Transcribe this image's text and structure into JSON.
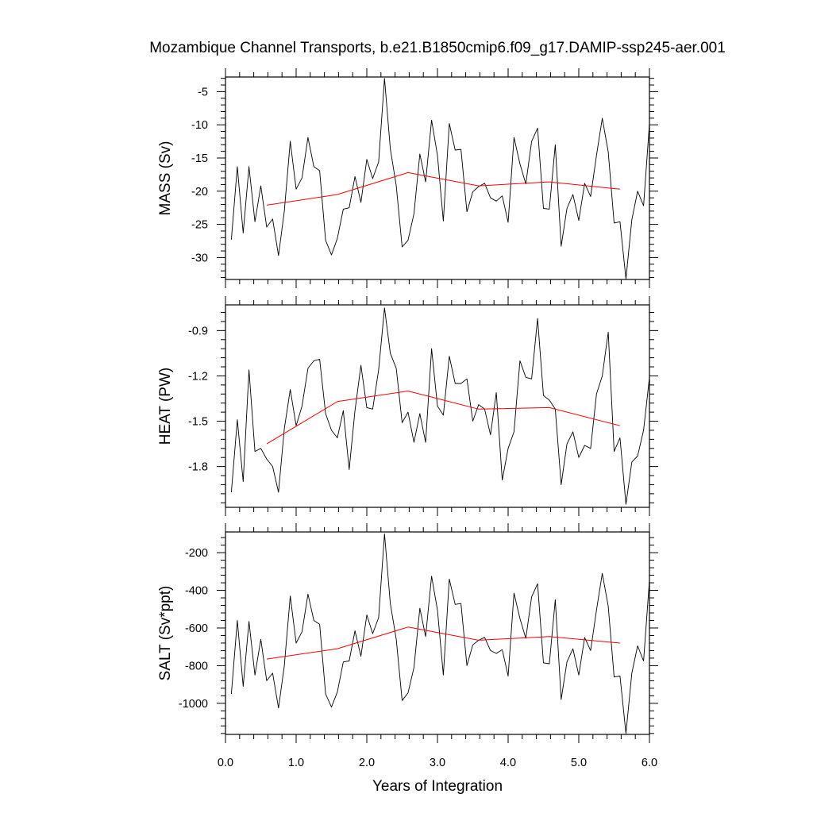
{
  "chart_data": {
    "type": "line",
    "title": "Mozambique Channel Transports, b.e21.B1850cmip6.f09_g17.DAMIP-ssp245-aer.001",
    "xlabel": "Years of Integration",
    "xlim": [
      0,
      6
    ],
    "xticks": [
      0,
      1,
      2,
      3,
      4,
      5,
      6
    ],
    "xtick_labels": [
      "0.0",
      "1.0",
      "2.0",
      "3.0",
      "4.0",
      "5.0",
      "6.0"
    ],
    "raw_x": [
      0.083,
      0.167,
      0.25,
      0.333,
      0.417,
      0.5,
      0.583,
      0.667,
      0.75,
      0.833,
      0.917,
      1.0,
      1.083,
      1.167,
      1.25,
      1.333,
      1.417,
      1.5,
      1.583,
      1.667,
      1.75,
      1.833,
      1.917,
      2.0,
      2.083,
      2.167,
      2.25,
      2.333,
      2.417,
      2.5,
      2.583,
      2.667,
      2.75,
      2.833,
      2.917,
      3.0,
      3.083,
      3.167,
      3.25,
      3.333,
      3.417,
      3.5,
      3.583,
      3.667,
      3.75,
      3.833,
      3.917,
      4.0,
      4.083,
      4.167,
      4.25,
      4.333,
      4.417,
      4.5,
      4.583,
      4.667,
      4.75,
      4.833,
      4.917,
      5.0,
      5.083,
      5.167,
      5.25,
      5.333,
      5.417,
      5.5,
      5.583,
      5.667,
      5.75,
      5.833,
      5.917,
      6.0
    ],
    "mean_x": [
      0.583,
      1.583,
      2.583,
      3.583,
      4.583,
      5.583
    ],
    "panels": [
      {
        "name": "mass",
        "ylabel": "MASS (Sv)",
        "ylim": [
          -33.3,
          -2.8
        ],
        "yticks": [
          -5,
          -10,
          -15,
          -20,
          -25,
          -30
        ],
        "ytick_labels": [
          "-5",
          "-10",
          "-15",
          "-20",
          "-25",
          "-30"
        ],
        "raw": [
          -27.3,
          -16.3,
          -26.3,
          -16.3,
          -24.6,
          -19.2,
          -25.4,
          -24.2,
          -29.7,
          -23.0,
          -12.5,
          -19.7,
          -18.0,
          -11.9,
          -16.3,
          -16.9,
          -27.4,
          -29.6,
          -27.1,
          -22.7,
          -22.5,
          -17.8,
          -21.7,
          -15.2,
          -18.1,
          -15.6,
          -3.0,
          -13.6,
          -19.2,
          -28.4,
          -27.4,
          -23.4,
          -14.4,
          -18.6,
          -9.3,
          -14.6,
          -24.5,
          -9.8,
          -13.8,
          -13.7,
          -23.1,
          -20.1,
          -19.3,
          -18.8,
          -21.0,
          -21.5,
          -20.7,
          -24.7,
          -11.9,
          -15.9,
          -18.9,
          -12.5,
          -10.5,
          -22.6,
          -22.7,
          -13.0,
          -28.3,
          -22.6,
          -20.5,
          -24.4,
          -18.8,
          -20.8,
          -14.6,
          -9.0,
          -14.1,
          -24.8,
          -24.6,
          -33.2,
          -24.3,
          -20.0,
          -22.2,
          -9.8
        ],
        "mean": [
          -22.1,
          -20.5,
          -17.2,
          -19.2,
          -18.6,
          -19.7
        ]
      },
      {
        "name": "heat",
        "ylabel": "HEAT (PW)",
        "ylim": [
          -2.07,
          -0.73
        ],
        "yticks": [
          -0.9,
          -1.2,
          -1.5,
          -1.8
        ],
        "ytick_labels": [
          "-0.9",
          "-1.2",
          "-1.5",
          "-1.8"
        ],
        "raw": [
          -1.97,
          -1.49,
          -1.9,
          -1.16,
          -1.7,
          -1.68,
          -1.75,
          -1.8,
          -1.97,
          -1.55,
          -1.29,
          -1.53,
          -1.4,
          -1.15,
          -1.1,
          -1.09,
          -1.45,
          -1.56,
          -1.61,
          -1.43,
          -1.82,
          -1.43,
          -1.13,
          -1.41,
          -1.42,
          -1.16,
          -0.75,
          -1.05,
          -1.15,
          -1.51,
          -1.44,
          -1.64,
          -1.45,
          -1.64,
          -1.02,
          -1.4,
          -1.46,
          -1.07,
          -1.25,
          -1.25,
          -1.22,
          -1.5,
          -1.39,
          -1.42,
          -1.59,
          -1.31,
          -1.89,
          -1.68,
          -1.57,
          -1.1,
          -1.21,
          -1.22,
          -0.82,
          -1.33,
          -1.36,
          -1.42,
          -1.92,
          -1.65,
          -1.57,
          -1.74,
          -1.66,
          -1.68,
          -1.32,
          -1.2,
          -0.91,
          -1.7,
          -1.61,
          -2.05,
          -1.77,
          -1.73,
          -1.56,
          -1.21
        ],
        "mean": [
          -1.65,
          -1.37,
          -1.3,
          -1.42,
          -1.41,
          -1.53
        ]
      },
      {
        "name": "salt",
        "ylabel": "SALT (Sv*ppt)",
        "ylim": [
          -1165,
          -90
        ],
        "yticks": [
          -200,
          -400,
          -600,
          -800,
          -1000
        ],
        "ytick_labels": [
          "-200",
          "-400",
          "-600",
          "-800",
          "-1000"
        ],
        "raw": [
          -950,
          -560,
          -910,
          -565,
          -850,
          -660,
          -880,
          -840,
          -1025,
          -800,
          -430,
          -680,
          -620,
          -420,
          -560,
          -580,
          -950,
          -1020,
          -940,
          -780,
          -775,
          -615,
          -750,
          -530,
          -630,
          -545,
          -100,
          -470,
          -660,
          -985,
          -945,
          -810,
          -495,
          -645,
          -325,
          -505,
          -850,
          -340,
          -475,
          -470,
          -800,
          -690,
          -665,
          -650,
          -720,
          -735,
          -715,
          -855,
          -415,
          -550,
          -655,
          -435,
          -365,
          -785,
          -790,
          -450,
          -980,
          -780,
          -710,
          -850,
          -650,
          -720,
          -505,
          -310,
          -485,
          -860,
          -855,
          -1160,
          -840,
          -695,
          -775,
          -345
        ],
        "mean": [
          -765,
          -710,
          -595,
          -665,
          -645,
          -680
        ]
      }
    ]
  }
}
